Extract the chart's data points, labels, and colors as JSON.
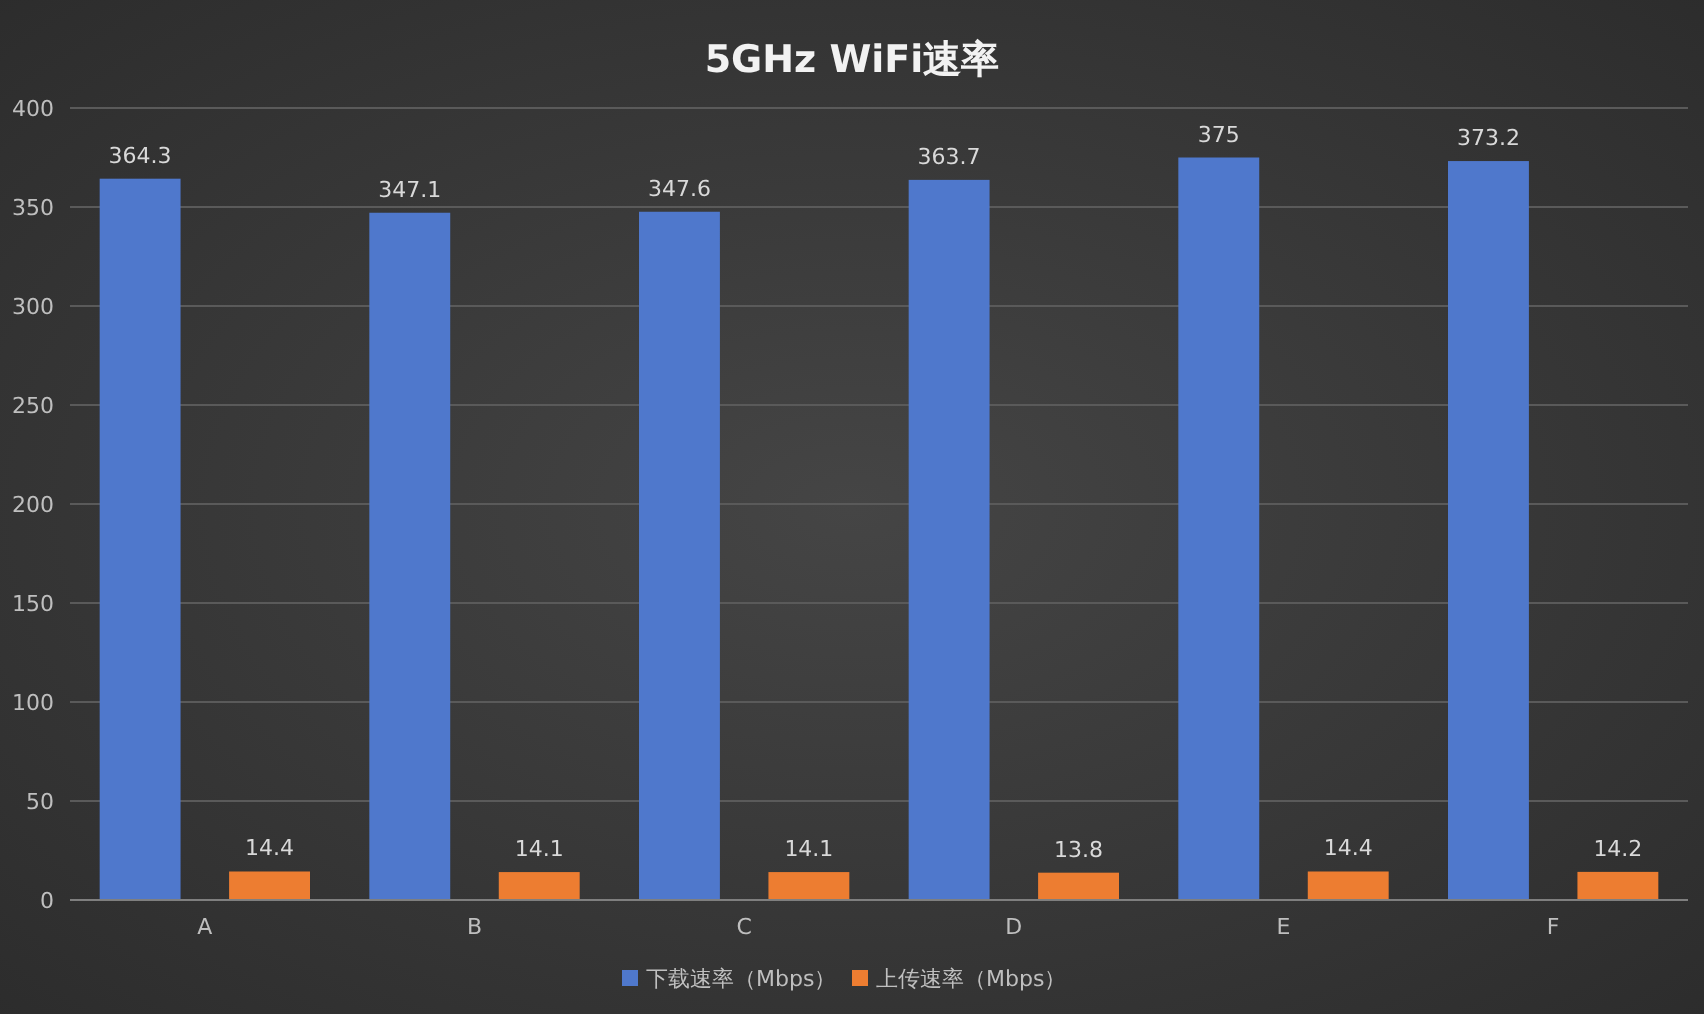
{
  "chart_data": {
    "type": "bar",
    "title": "5GHz WiFi速率",
    "categories": [
      "A",
      "B",
      "C",
      "D",
      "E",
      "F"
    ],
    "series": [
      {
        "name": "下载速率（Mbps）",
        "color": "#4f78cc",
        "values": [
          364.3,
          347.1,
          347.6,
          363.7,
          375,
          373.2
        ]
      },
      {
        "name": "上传速率（Mbps）",
        "color": "#ed7d31",
        "values": [
          14.4,
          14.1,
          14.1,
          13.8,
          14.4,
          14.2
        ]
      }
    ],
    "ylim": [
      0,
      400
    ],
    "yticks": [
      0,
      50,
      100,
      150,
      200,
      250,
      300,
      350,
      400
    ],
    "grid": "y",
    "legend": "bottom",
    "data_labels": true
  }
}
